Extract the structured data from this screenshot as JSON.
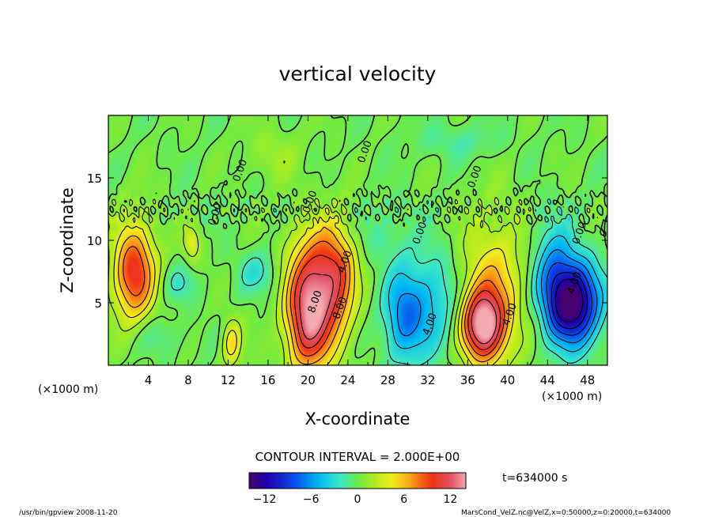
{
  "chart_data": {
    "type": "heatmap",
    "title": "vertical velocity",
    "xlabel": "X-coordinate",
    "ylabel": "Z-coordinate",
    "x_unit": "(×1000 m)",
    "y_unit": "(×1000 m)",
    "xlim": [
      0,
      50
    ],
    "ylim": [
      0,
      20
    ],
    "x_ticks": [
      4,
      8,
      12,
      16,
      20,
      24,
      28,
      32,
      36,
      40,
      44,
      48
    ],
    "y_ticks": [
      5,
      10,
      15
    ],
    "contour_interval_label": "CONTOUR INTERVAL = 2.000E+00",
    "time_label": "t=634000 s",
    "colorbar_ticks": [
      -12,
      -6,
      0,
      6,
      12
    ],
    "colorbar_range": [
      -14,
      14
    ],
    "contour_labels": [
      {
        "text": "0.00",
        "x": 11,
        "y": 12
      },
      {
        "text": "0.00",
        "x": 13.5,
        "y": 15.5
      },
      {
        "text": "0.00",
        "x": 20.5,
        "y": 13
      },
      {
        "text": "0.00",
        "x": 26,
        "y": 17
      },
      {
        "text": "0.00",
        "x": 31.5,
        "y": 10.5
      },
      {
        "text": "0.00",
        "x": 37,
        "y": 15
      },
      {
        "text": "0.00",
        "x": 47.5,
        "y": 10.5
      },
      {
        "text": "4.00",
        "x": 24,
        "y": 8.2
      },
      {
        "text": "8.00",
        "x": 21,
        "y": 5
      },
      {
        "text": "8.00",
        "x": 23.5,
        "y": 4.5
      },
      {
        "text": "4.00",
        "x": 32.5,
        "y": 3.2
      },
      {
        "text": "4.00",
        "x": 40.5,
        "y": 4
      },
      {
        "text": "4.00",
        "x": 47,
        "y": 6.5
      }
    ],
    "features": [
      {
        "x": 2.5,
        "z": 7.5,
        "w": 10,
        "sx": 1.5,
        "sz": 2.8
      },
      {
        "x": 8.3,
        "z": 9.8,
        "w": 4,
        "sx": 0.6,
        "sz": 1.0
      },
      {
        "x": 12.3,
        "z": 1.8,
        "w": 5,
        "sx": 0.7,
        "sz": 1.4
      },
      {
        "x": 20,
        "z": 4.0,
        "w": 13,
        "sx": 1.6,
        "sz": 3.2
      },
      {
        "x": 22.8,
        "z": 6.5,
        "w": 7,
        "sx": 1.4,
        "sz": 3.2
      },
      {
        "x": 21,
        "z": 8.5,
        "w": 4,
        "sx": 2.2,
        "sz": 2.5
      },
      {
        "x": 29.5,
        "z": 4.0,
        "w": -6,
        "sx": 1.4,
        "sz": 2.6
      },
      {
        "x": 32.5,
        "z": 5.0,
        "w": -4,
        "sx": 2.0,
        "sz": 3.0
      },
      {
        "x": 37.5,
        "z": 3.2,
        "w": 13,
        "sx": 1.5,
        "sz": 2.0
      },
      {
        "x": 38.5,
        "z": 6.5,
        "w": 5,
        "sx": 2.4,
        "sz": 4.0
      },
      {
        "x": 46.5,
        "z": 5.0,
        "w": -14,
        "sx": 1.8,
        "sz": 2.3
      },
      {
        "x": 44.5,
        "z": 7.5,
        "w": -5,
        "sx": 1.5,
        "sz": 2.8
      },
      {
        "x": 15,
        "z": 7.5,
        "w": -2.5,
        "sx": 1.5,
        "sz": 1.2
      },
      {
        "x": 7,
        "z": 6.5,
        "w": -2,
        "sx": 1.2,
        "sz": 1.0
      },
      {
        "x": 4.5,
        "z": 2.5,
        "w": -1.5,
        "sx": 2.0,
        "sz": 1.2
      },
      {
        "x": 27,
        "z": 10.5,
        "w": -1.5,
        "sx": 2.0,
        "sz": 1.5
      },
      {
        "x": 35,
        "z": 18,
        "w": -1.5,
        "sx": 3.0,
        "sz": 1.0
      },
      {
        "x": 16.5,
        "z": 17,
        "w": 1.5,
        "sx": 2.0,
        "sz": 1.5
      }
    ]
  },
  "footer": {
    "left": "/usr/bin/gpview  2008-11-20",
    "right": "MarsCond_VelZ.nc@VelZ,x=0:50000,z=0:20000,t=634000"
  }
}
